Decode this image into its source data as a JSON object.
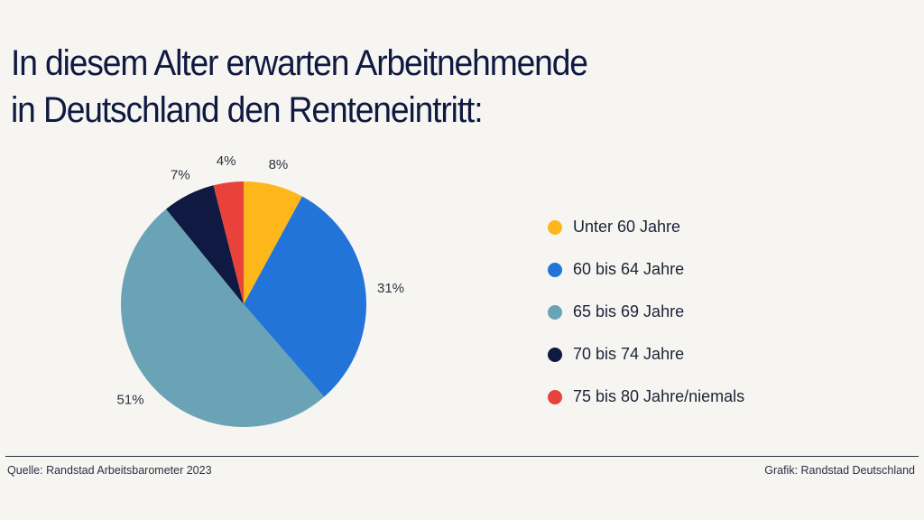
{
  "title": {
    "line1": "In diesem Alter erwarten Arbeitnehmende",
    "line2": "in Deutschland den Renteneintritt:"
  },
  "chart_data": {
    "type": "pie",
    "title": "In diesem Alter erwarten Arbeitnehmende in Deutschland den Renteneintritt:",
    "categories": [
      "Unter 60 Jahre",
      "60 bis 64 Jahre",
      "65 bis 69 Jahre",
      "70 bis 74 Jahre",
      "75 bis 80 Jahre/niemals"
    ],
    "values": [
      8,
      31,
      51,
      7,
      4
    ],
    "labels": [
      "8%",
      "31%",
      "51%",
      "7%",
      "4%"
    ],
    "colors": [
      "#fdb71a",
      "#2374d9",
      "#6aa3b5",
      "#0f1941",
      "#e8423a"
    ],
    "legend_placement": "right",
    "start": "top, clockwise"
  },
  "footer": {
    "source": "Quelle: Randstad Arbeitsbarometer 2023",
    "credit": "Grafik: Randstad Deutschland"
  }
}
